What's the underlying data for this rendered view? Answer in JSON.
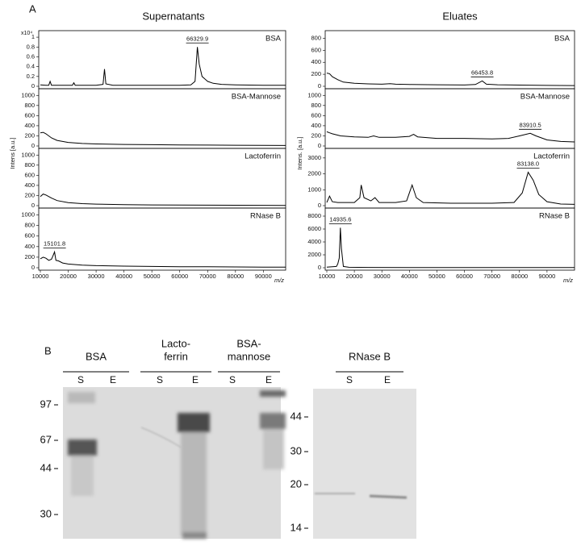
{
  "panel_a": "A",
  "columns": [
    "Supernatants",
    "Eluates"
  ],
  "y_labels": [
    "Intens [a.u.]",
    "Intens. [a.u.]"
  ],
  "x_label": "m/z",
  "y_multiplier": "x10⁴",
  "chart_data": [
    {
      "type": "line",
      "title": "BSA",
      "color": "#000000",
      "xlim": [
        10000,
        98000
      ],
      "ylim": [
        0,
        1.1
      ],
      "yticks": [
        0,
        0.2,
        0.4,
        0.6,
        0.8,
        1.0
      ],
      "x": [
        10000,
        12000,
        13000,
        13500,
        14000,
        16000,
        20000,
        21500,
        22000,
        22500,
        26000,
        30000,
        32500,
        33000,
        33500,
        36000,
        40000,
        50000,
        60000,
        64000,
        65500,
        66330,
        67000,
        68000,
        70000,
        72000,
        75000,
        80000,
        90000,
        98000
      ],
      "values": [
        0.03,
        0.02,
        0.02,
        0.1,
        0.02,
        0.02,
        0.02,
        0.02,
        0.07,
        0.02,
        0.02,
        0.02,
        0.04,
        0.35,
        0.05,
        0.02,
        0.02,
        0.02,
        0.02,
        0.03,
        0.1,
        0.8,
        0.45,
        0.2,
        0.1,
        0.06,
        0.04,
        0.03,
        0.02,
        0.02
      ],
      "peaks": [
        {
          "value": 66329.9,
          "label": "66329.9"
        }
      ]
    },
    {
      "type": "line",
      "title": "BSA-Mannose",
      "color": "#000000",
      "xlim": [
        10000,
        98000
      ],
      "ylim": [
        0,
        1100
      ],
      "yticks": [
        0,
        200,
        400,
        600,
        800,
        1000
      ],
      "x": [
        10000,
        11000,
        12000,
        14000,
        16000,
        20000,
        25000,
        30000,
        40000,
        50000,
        60000,
        70000,
        80000,
        90000,
        98000
      ],
      "values": [
        260,
        270,
        240,
        160,
        110,
        70,
        50,
        40,
        30,
        25,
        20,
        18,
        15,
        12,
        10
      ]
    },
    {
      "type": "line",
      "title": "Lactoferrin",
      "color": "#000000",
      "xlim": [
        10000,
        98000
      ],
      "ylim": [
        0,
        1100
      ],
      "yticks": [
        0,
        200,
        400,
        600,
        800,
        1000
      ],
      "x": [
        10000,
        11000,
        12000,
        14000,
        16000,
        20000,
        25000,
        30000,
        40000,
        50000,
        60000,
        70000,
        80000,
        90000,
        98000
      ],
      "values": [
        180,
        230,
        210,
        150,
        100,
        60,
        40,
        30,
        20,
        15,
        12,
        10,
        8,
        6,
        5
      ]
    },
    {
      "type": "line",
      "title": "RNase B",
      "color": "#000000",
      "xlim": [
        10000,
        98000
      ],
      "ylim": [
        0,
        1100
      ],
      "yticks": [
        0,
        200,
        400,
        600,
        800,
        1000
      ],
      "xticks": [
        10000,
        20000,
        30000,
        40000,
        50000,
        60000,
        70000,
        80000,
        90000
      ],
      "x": [
        10000,
        11000,
        12000,
        13000,
        14000,
        14500,
        15100,
        15600,
        16500,
        18000,
        20000,
        25000,
        30000,
        40000,
        50000,
        60000,
        70000,
        80000,
        90000,
        98000
      ],
      "values": [
        170,
        200,
        180,
        140,
        160,
        220,
        300,
        140,
        130,
        90,
        70,
        50,
        40,
        30,
        25,
        20,
        18,
        15,
        12,
        10
      ],
      "peaks": [
        {
          "value": 15101.8,
          "label": "15101.8"
        }
      ]
    },
    {
      "type": "line",
      "title": "BSA",
      "color": "#000000",
      "xlim": [
        10000,
        100000
      ],
      "ylim": [
        0,
        900
      ],
      "yticks": [
        0,
        200,
        400,
        600,
        800
      ],
      "x": [
        10000,
        11000,
        12000,
        14000,
        16000,
        20000,
        25000,
        30000,
        33000,
        35000,
        40000,
        50000,
        60000,
        64000,
        66450,
        68000,
        72000,
        80000,
        90000,
        100000
      ],
      "values": [
        220,
        210,
        160,
        110,
        70,
        50,
        40,
        35,
        45,
        35,
        30,
        25,
        22,
        30,
        90,
        35,
        25,
        20,
        15,
        12
      ],
      "peaks": [
        {
          "value": 66453.8,
          "label": "66453.8"
        }
      ]
    },
    {
      "type": "line",
      "title": "BSA-Mannose",
      "color": "#000000",
      "xlim": [
        10000,
        100000
      ],
      "ylim": [
        0,
        1100
      ],
      "yticks": [
        0,
        200,
        400,
        600,
        800,
        1000
      ],
      "x": [
        10000,
        11000,
        12000,
        15000,
        20000,
        25000,
        27000,
        29000,
        35000,
        40000,
        41500,
        43000,
        50000,
        60000,
        70000,
        76000,
        80000,
        83910,
        86000,
        90000,
        95000,
        100000
      ],
      "values": [
        280,
        260,
        240,
        200,
        180,
        170,
        200,
        170,
        170,
        190,
        230,
        180,
        150,
        150,
        140,
        150,
        200,
        250,
        200,
        120,
        90,
        80
      ],
      "peaks": [
        {
          "value": 83910.5,
          "label": "83910.5"
        }
      ]
    },
    {
      "type": "line",
      "title": "Lactoferrin",
      "color": "#000000",
      "xlim": [
        10000,
        100000
      ],
      "ylim": [
        0,
        3500
      ],
      "yticks": [
        0,
        1000,
        2000,
        3000
      ],
      "x": [
        10000,
        11000,
        12000,
        14000,
        20000,
        22000,
        22500,
        23500,
        26000,
        27500,
        29000,
        35000,
        39000,
        41000,
        42500,
        45000,
        55000,
        70000,
        78000,
        81000,
        83138,
        85000,
        87000,
        90000,
        95000,
        100000
      ],
      "values": [
        200,
        600,
        250,
        200,
        200,
        500,
        1300,
        500,
        300,
        500,
        200,
        200,
        300,
        1300,
        500,
        200,
        150,
        150,
        200,
        800,
        2100,
        1600,
        700,
        250,
        100,
        80
      ],
      "peaks": [
        {
          "value": 83138.0,
          "label": "83138.0"
        }
      ]
    },
    {
      "type": "line",
      "title": "RNase B",
      "color": "#000000",
      "xlim": [
        10000,
        100000
      ],
      "ylim": [
        0,
        9000
      ],
      "yticks": [
        0,
        2000,
        4000,
        6000,
        8000
      ],
      "xticks": [
        10000,
        20000,
        30000,
        40000,
        50000,
        60000,
        70000,
        80000,
        90000
      ],
      "x": [
        10000,
        12000,
        13500,
        14000,
        14500,
        14936,
        15300,
        16000,
        18000,
        25000,
        40000,
        60000,
        80000,
        100000
      ],
      "values": [
        100,
        150,
        200,
        600,
        1500,
        6200,
        3000,
        200,
        80,
        50,
        40,
        30,
        30,
        20
      ],
      "peaks": [
        {
          "value": 14935.6,
          "label": "14935.6"
        }
      ]
    }
  ],
  "gel": {
    "label": "B",
    "groups": [
      {
        "name": [
          "BSA"
        ],
        "lanes": [
          "S",
          "E"
        ]
      },
      {
        "name": [
          "Lacto-",
          "ferrin"
        ],
        "lanes": [
          "S",
          "E"
        ]
      },
      {
        "name": [
          "BSA-",
          "mannose"
        ],
        "lanes": [
          "S",
          "E"
        ]
      },
      {
        "name": [
          "RNase B"
        ],
        "lanes": [
          "S",
          "E"
        ]
      }
    ],
    "markers_left": [
      "97",
      "67",
      "44",
      "30"
    ],
    "markers_right": [
      "44",
      "30",
      "20",
      "14"
    ]
  }
}
